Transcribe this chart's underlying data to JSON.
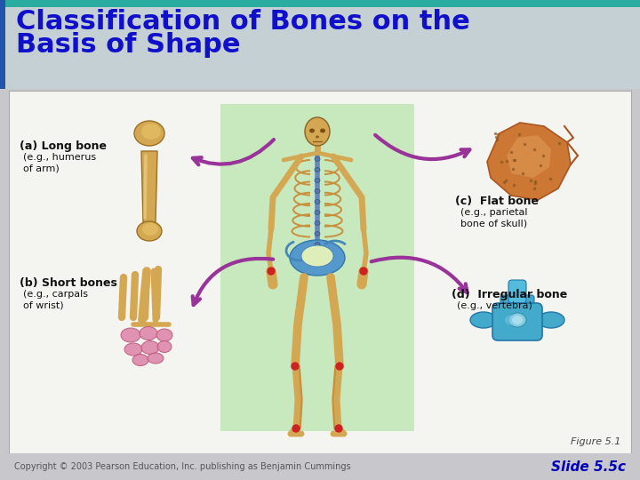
{
  "title_line1": "Classification of Bones on the",
  "title_line2": "Basis of Shape",
  "title_color": "#1010CC",
  "title_fontsize": 22,
  "slide_bg": "#C8C8CC",
  "header_bg_color": "#B8CCCC",
  "teal_bar_color": "#2AACA0",
  "content_bg": "#F2F2F0",
  "content_border": "#BBBBAA",
  "green_panel_color": "#C8E8BE",
  "figure_label": "Figure 5.1",
  "figure_label_color": "#444444",
  "figure_label_fontsize": 8,
  "copyright_text": "Copyright © 2003 Pearson Education, Inc. publishing as Benjamin Cummings",
  "copyright_color": "#555555",
  "copyright_fontsize": 7,
  "slide_label": "Slide 5.5c",
  "slide_label_color": "#0000BB",
  "slide_label_fontsize": 11,
  "label_a_bold": "(a) Long bone",
  "label_a_sub": "(e.g., humerus\nof arm)",
  "label_b_bold": "(b) Short bones",
  "label_b_sub": "(e.g., carpals\nof wrist)",
  "label_c_bold": "(c)  Flat bone",
  "label_c_sub": "(e.g., parietal\nbone of skull)",
  "label_d_bold": "(d)  Irregular bone",
  "label_d_sub": "(e.g., vertebra)",
  "label_fontsize": 9,
  "sub_fontsize": 8,
  "arrow_color": "#993399",
  "long_bone_color": "#D4A853",
  "long_bone_light": "#E8CC80",
  "long_bone_dark": "#A07828",
  "flat_bone_color": "#CC7733",
  "flat_bone_light": "#E09955",
  "short_bone_color": "#DD88AA",
  "short_bone_dark": "#BB4466",
  "irregular_bone_color": "#44AACC",
  "irregular_bone_dark": "#2277AA",
  "skin_color": "#D4A853",
  "rib_color": "#C8903C",
  "pelvis_color": "#5599CC",
  "joint_color": "#CC2222"
}
